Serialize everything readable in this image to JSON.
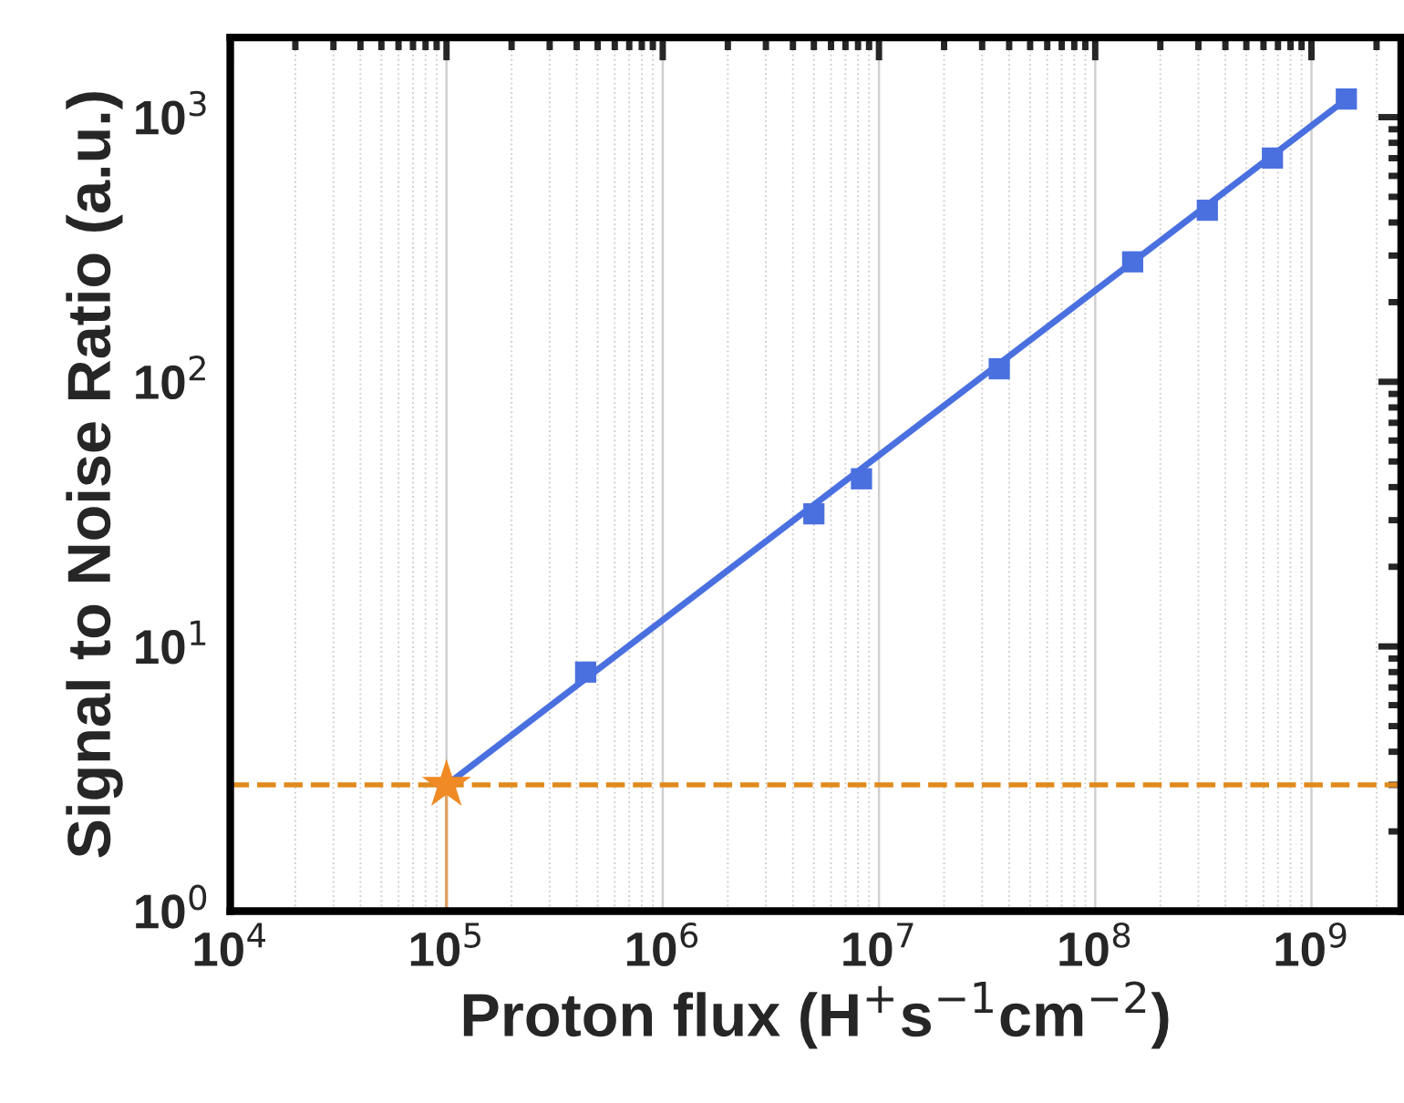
{
  "chart_data": {
    "type": "scatter",
    "xlabel": "Proton flux (H$^{+}$s$^{−1}$cm$^{−2}$)",
    "ylabel": "Signal to Noise Ratio (a.u.)",
    "log": "xy",
    "grid": "x",
    "legend": false,
    "series": [
      {
        "type": "line",
        "color": "#4a70e0",
        "x": [
          100000,
          1450000000
        ],
        "values": [
          3,
          1170
        ],
        "marker": "none",
        "line_style": "solid"
      },
      {
        "color": "#4a70e0",
        "marker": "square",
        "x": [
          440000,
          5000000,
          8300000,
          36000000,
          149000000,
          330000000,
          660000000,
          1450000000
        ],
        "values": [
          8.0,
          31.7,
          43,
          112,
          284,
          445,
          701,
          1170
        ]
      },
      {
        "color": "#f08a24",
        "marker": "star",
        "x": [
          100000
        ],
        "values": [
          3
        ]
      }
    ],
    "ref_lines": [
      {
        "axis": "y",
        "value": 3,
        "color": "#e08a1e",
        "line_style": "dashed"
      },
      {
        "axis": "x",
        "value": 100000,
        "color": "#e0a060",
        "line_style": "solid"
      }
    ],
    "xlim": [
      10000,
      2600000000
    ],
    "ylim": [
      1,
      2000
    ],
    "xticks": [
      {
        "value": 10000,
        "label": "10$^{4}$"
      },
      {
        "value": 100000,
        "label": "10$^{5}$"
      },
      {
        "value": 1000000,
        "label": "10$^{6}$"
      },
      {
        "value": 10000000,
        "label": "10$^{7}$"
      },
      {
        "value": 100000000,
        "label": "10$^{8}$"
      },
      {
        "value": 1000000000,
        "label": "10$^{9}$"
      }
    ],
    "yticks": [
      {
        "value": 1,
        "label": "10$^{0}$"
      },
      {
        "value": 10,
        "label": "10$^{1}$"
      },
      {
        "value": 100,
        "label": "10$^{2}$"
      },
      {
        "value": 1000,
        "label": "10$^{3}$"
      }
    ]
  }
}
